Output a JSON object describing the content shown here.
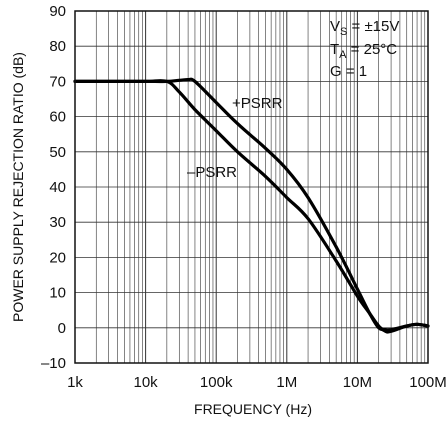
{
  "chart_data": {
    "type": "line",
    "title": "",
    "xlabel": "FREQUENCY (Hz)",
    "ylabel": "POWER SUPPLY REJECTION RATIO (dB)",
    "x_scale": "log",
    "xlim": [
      1000,
      100000000
    ],
    "ylim": [
      -10,
      90
    ],
    "x_ticks": [
      1000,
      10000,
      100000,
      1000000,
      10000000,
      100000000
    ],
    "x_tick_labels": [
      "1k",
      "10k",
      "100k",
      "1M",
      "10M",
      "100M"
    ],
    "y_ticks": [
      -10,
      0,
      10,
      20,
      30,
      40,
      50,
      60,
      70,
      80,
      90
    ],
    "y_tick_labels": [
      "–10",
      "0",
      "10",
      "20",
      "30",
      "40",
      "50",
      "60",
      "70",
      "80",
      "90"
    ],
    "grid": true,
    "conditions": [
      "V_S = ±15V",
      "T_A = 25°C",
      "G = 1"
    ],
    "series": [
      {
        "name": "+PSRR",
        "x": [
          1000,
          3000,
          10000,
          20000,
          30000,
          40000,
          50000,
          100000,
          200000,
          500000,
          1000000,
          2000000,
          5000000,
          10000000,
          15000000,
          20000000,
          25000000,
          30000000,
          50000000,
          70000000,
          100000000
        ],
        "y": [
          70,
          70,
          70,
          70,
          70.3,
          70.5,
          70,
          64,
          58,
          51,
          45,
          37,
          23,
          11,
          4,
          0,
          -0.5,
          -0.5,
          0.5,
          1,
          0.5
        ]
      },
      {
        "name": "–PSRR",
        "x": [
          1000,
          3000,
          10000,
          20000,
          30000,
          50000,
          100000,
          200000,
          500000,
          1000000,
          2000000,
          5000000,
          10000000,
          15000000,
          20000000,
          25000000,
          30000000,
          50000000,
          70000000,
          100000000
        ],
        "y": [
          70,
          70,
          70,
          70,
          67,
          62,
          56,
          50,
          43,
          37,
          31,
          19,
          9,
          4,
          0.5,
          -1,
          -1,
          0.5,
          1,
          0.5
        ]
      }
    ]
  }
}
